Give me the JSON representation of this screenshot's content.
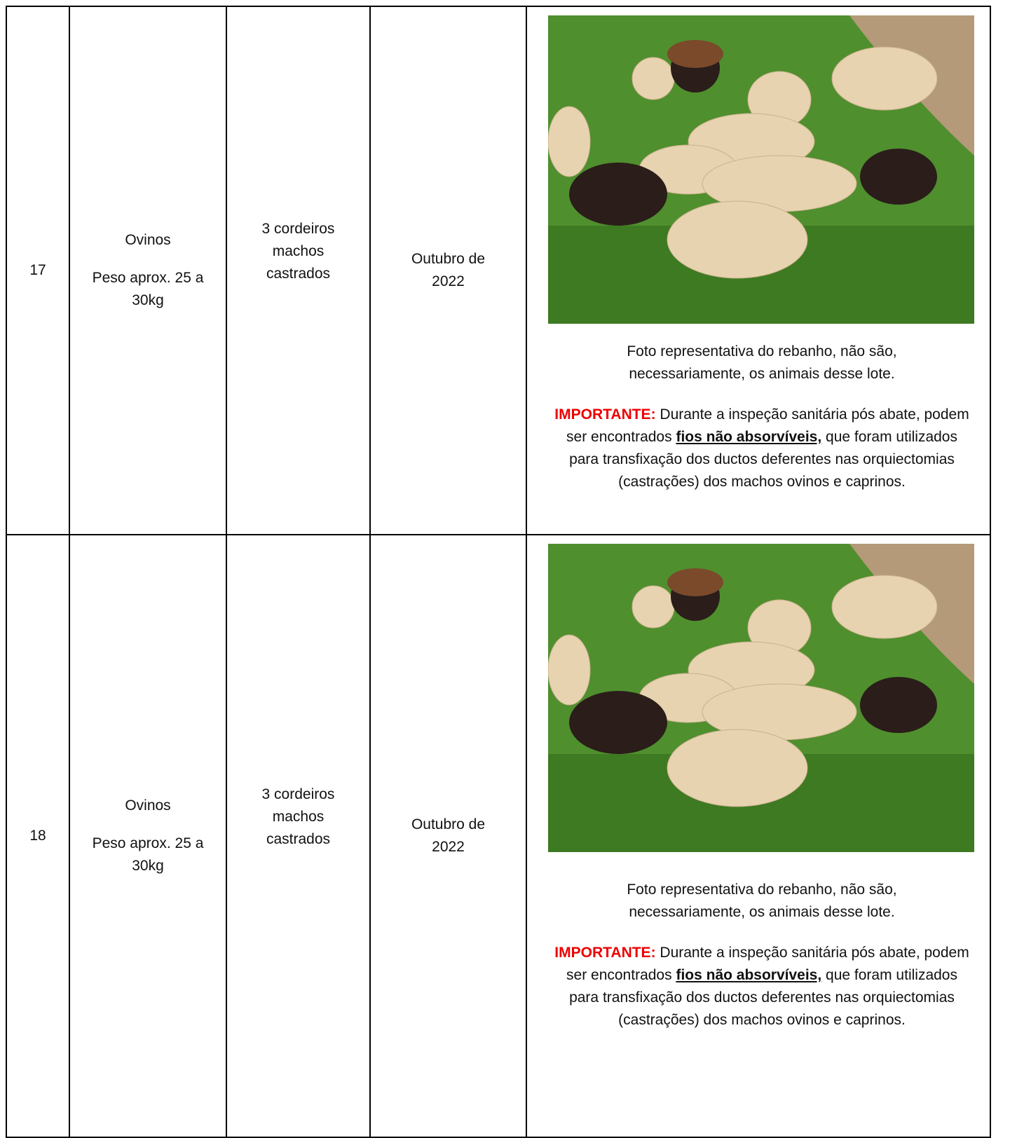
{
  "table": {
    "rows": [
      {
        "number": "17",
        "species": "Ovinos",
        "weight": "Peso aprox. 25 a 30kg",
        "quantity": "3 cordeiros machos castrados",
        "date": "Outubro de 2022",
        "caption": "Foto representativa do rebanho, não são, necessariamente, os animais desse lote.",
        "note": {
          "label": "IMPORTANTE:",
          "text_before": "Durante a inspeção sanitária pós abate, podem ser encontrados",
          "highlight": "fios não absorvíveis,",
          "text_after": "que foram utilizados para transfixação dos ductos deferentes nas orquiectomias (castrações) dos machos ovinos e caprinos."
        }
      },
      {
        "number": "18",
        "species": "Ovinos",
        "weight": "Peso aprox. 25 a 30kg",
        "quantity": "3 cordeiros machos castrados",
        "date": "Outubro de 2022",
        "caption": "Foto representativa do rebanho, não são, necessariamente, os animais desse lote.",
        "note": {
          "label": "IMPORTANTE:",
          "text_before": "Durante a inspeção sanitária pós abate, podem ser encontrados",
          "highlight": "fios não absorvíveis,",
          "text_after": "que foram utilizados para transfixação dos ductos deferentes nas orquiectomias (castrações) dos machos ovinos e caprinos."
        }
      }
    ]
  }
}
